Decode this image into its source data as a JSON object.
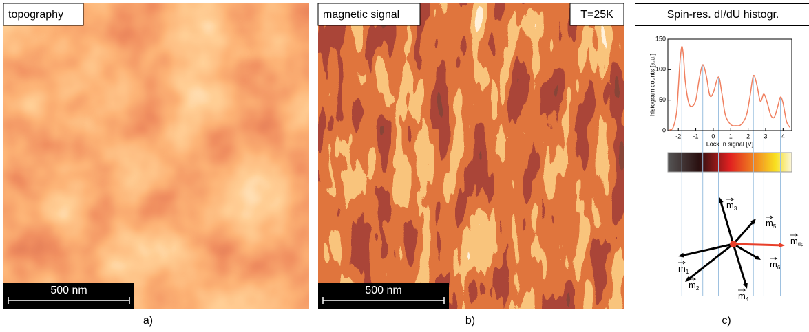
{
  "panels": [
    {
      "label": "topography",
      "scale_bar": "500 nm",
      "caption": "a)"
    },
    {
      "label": "magnetic signal",
      "temperature": "T=25K",
      "scale_bar": "500 nm",
      "caption": "b)"
    },
    {
      "title": "Spin-res. dI/dU histogr.",
      "caption": "c)"
    }
  ],
  "chart_data": {
    "type": "line",
    "xlabel": "Lock In signal [V]",
    "ylabel": "histogram counts [a.u.]",
    "x": [
      -2.5,
      -2.3,
      -2.1,
      -2.0,
      -1.9,
      -1.8,
      -1.7,
      -1.6,
      -1.4,
      -1.2,
      -1.0,
      -0.8,
      -0.6,
      -0.4,
      -0.2,
      0.0,
      0.3,
      0.5,
      0.7,
      1.0,
      1.3,
      1.6,
      1.9,
      2.1,
      2.3,
      2.5,
      2.7,
      2.9,
      3.1,
      3.3,
      3.5,
      3.7,
      3.85,
      4.0,
      4.2,
      4.4
    ],
    "values": [
      1,
      5,
      30,
      70,
      115,
      138,
      120,
      80,
      45,
      40,
      50,
      85,
      108,
      90,
      58,
      62,
      88,
      60,
      25,
      10,
      8,
      10,
      25,
      55,
      90,
      75,
      48,
      60,
      45,
      25,
      22,
      40,
      55,
      45,
      15,
      5
    ],
    "color": "#f08060",
    "xlim": [
      -2.6,
      4.5
    ],
    "ylim": [
      0,
      150
    ],
    "xticks": [
      -2,
      -1,
      0,
      1,
      2,
      3,
      4
    ],
    "yticks": [
      0,
      50,
      100,
      150
    ]
  },
  "vectors": [
    {
      "symbol": "m",
      "index": "1"
    },
    {
      "symbol": "m",
      "index": "2"
    },
    {
      "symbol": "m",
      "index": "3"
    },
    {
      "symbol": "m",
      "index": "4"
    },
    {
      "symbol": "m",
      "index": "5"
    },
    {
      "symbol": "m",
      "index": "6"
    },
    {
      "symbol": "m",
      "index": "tip"
    }
  ]
}
